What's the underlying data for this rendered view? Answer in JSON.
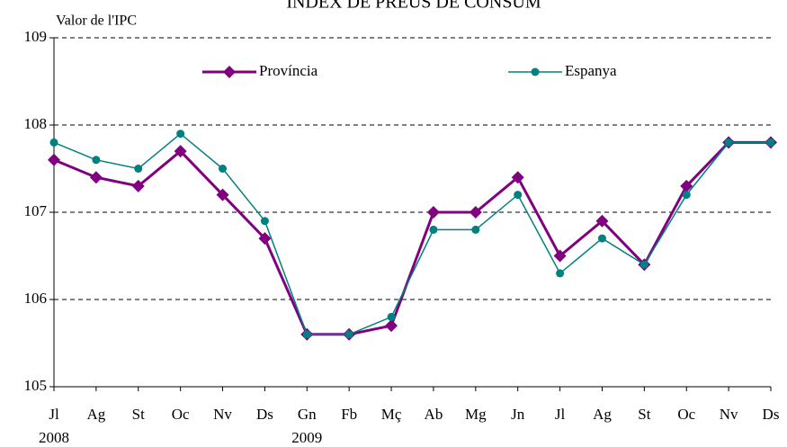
{
  "chart_data": {
    "type": "line",
    "title": "ÍNDEX DE PREUS DE CONSUM",
    "y_label": "Valor de l'IPC",
    "categories": [
      "Jl",
      "Ag",
      "St",
      "Oc",
      "Nv",
      "Ds",
      "Gn",
      "Fb",
      "Mç",
      "Ab",
      "Mg",
      "Jn",
      "Jl",
      "Ag",
      "St",
      "Oc",
      "Nv",
      "Ds"
    ],
    "year_labels": [
      "2008",
      null,
      null,
      null,
      null,
      null,
      "2009",
      null,
      null,
      null,
      null,
      null,
      null,
      null,
      null,
      null,
      null,
      null
    ],
    "series": [
      {
        "name": "Província",
        "color": "#800080",
        "marker": "diamond",
        "values": [
          107.6,
          107.4,
          107.3,
          107.7,
          107.2,
          106.7,
          105.6,
          105.6,
          105.7,
          107.0,
          107.0,
          107.4,
          106.5,
          106.9,
          106.4,
          107.3,
          107.8,
          107.8
        ]
      },
      {
        "name": "Espanya",
        "color": "#008080",
        "marker": "circle",
        "values": [
          107.8,
          107.6,
          107.5,
          107.9,
          107.5,
          106.9,
          105.6,
          105.6,
          105.8,
          106.8,
          106.8,
          107.2,
          106.3,
          106.7,
          106.4,
          107.2,
          107.8,
          107.8
        ]
      }
    ],
    "ylim": [
      105,
      109
    ],
    "yticks": [
      105,
      106,
      107,
      108,
      109
    ],
    "grid": true,
    "legend": "top"
  }
}
